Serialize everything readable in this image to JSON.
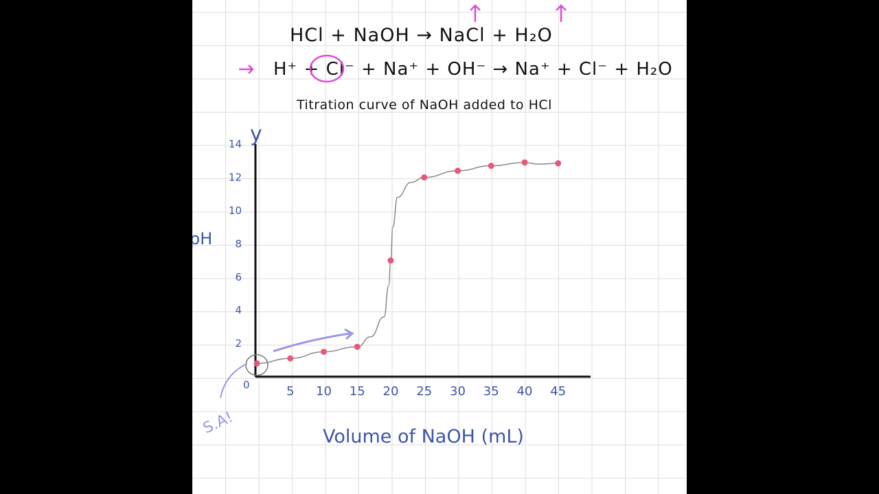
{
  "equations": {
    "molecular": "HCl + NaOH → NaCl + H₂O",
    "ionic": "H⁺ + Cl⁻ + Na⁺ + OH⁻ → Na⁺ + Cl⁻ + H₂O"
  },
  "annotation": "S.A!",
  "colors": {
    "ink": "#111111",
    "axis_labels": "#3d56a8",
    "data_points": "#e8577a",
    "highlight": "#e04bd6",
    "arrow": "#9a95e8",
    "grid": "#d9d9d9"
  },
  "chart_data": {
    "type": "scatter",
    "title": "Titration curve of NaOH added to HCl",
    "xlabel": "Volume of NaOH (mL)",
    "ylabel": "pH",
    "y_axis_marker": "y",
    "x_ticks": [
      0,
      5,
      10,
      15,
      20,
      25,
      30,
      35,
      40,
      45
    ],
    "y_ticks": [
      2,
      4,
      6,
      8,
      10,
      12,
      14
    ],
    "xlim": [
      0,
      50
    ],
    "ylim": [
      0,
      14
    ],
    "grid": true,
    "series": [
      {
        "x": [
          0,
          5,
          10,
          15,
          20,
          25,
          30,
          35,
          40,
          45
        ],
        "y": [
          0.8,
          1.1,
          1.5,
          1.8,
          7.0,
          12.0,
          12.4,
          12.7,
          12.9,
          12.85
        ]
      }
    ],
    "curve": {
      "x": [
        0,
        5,
        10,
        15,
        17,
        19,
        19.7,
        20,
        20.3,
        21,
        23,
        25,
        30,
        35,
        40,
        42,
        45
      ],
      "y": [
        0.8,
        1.1,
        1.5,
        1.8,
        2.4,
        3.6,
        5.5,
        7.0,
        9.0,
        10.8,
        11.7,
        12.0,
        12.4,
        12.7,
        12.9,
        12.8,
        12.85
      ]
    }
  }
}
